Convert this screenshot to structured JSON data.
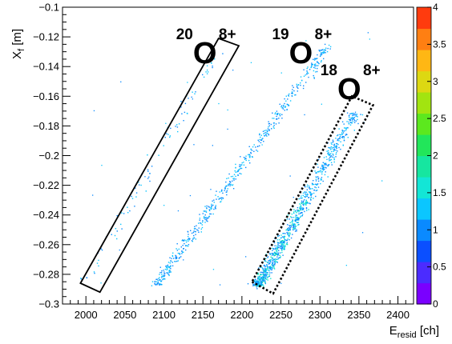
{
  "chart_data": {
    "type": "heatmap",
    "title": "",
    "xlabel": {
      "main": "E",
      "sub": "resid",
      "unit": "[ch]"
    },
    "ylabel": {
      "main": "X",
      "sub": "f",
      "unit": "[m]"
    },
    "xlim": [
      1970,
      2420
    ],
    "ylim": [
      -0.3,
      -0.1
    ],
    "x_ticks": [
      2000,
      2050,
      2100,
      2150,
      2200,
      2250,
      2300,
      2350,
      2400
    ],
    "x_tick_labels": [
      "2000",
      "2050",
      "2100",
      "2150",
      "2200",
      "2250",
      "2300",
      "2350",
      "2400"
    ],
    "y_ticks": [
      -0.3,
      -0.28,
      -0.26,
      -0.24,
      -0.22,
      -0.2,
      -0.18,
      -0.16,
      -0.14,
      -0.12,
      -0.1
    ],
    "y_tick_labels": [
      "−0.3",
      "−0.28",
      "−0.26",
      "−0.24",
      "−0.22",
      "−0.2",
      "−0.18",
      "−0.16",
      "−0.14",
      "−0.12",
      "−0.1"
    ],
    "z_range": [
      0,
      4
    ],
    "z_ticks": [
      0,
      0.5,
      1,
      1.5,
      2,
      2.5,
      3,
      3.5,
      4
    ],
    "z_tick_labels": [
      "0",
      "0.5",
      "1",
      "1.5",
      "2",
      "2.5",
      "3",
      "3.5",
      "4"
    ],
    "palette": [
      "#7a00ff",
      "#4b2cff",
      "#0b4fff",
      "#0a8aff",
      "#0bc6ff",
      "#13e6d6",
      "#16e6a0",
      "#22e65a",
      "#5ce81e",
      "#a2e410",
      "#ddd812",
      "#ffb714",
      "#ff7f12",
      "#ff3b0e"
    ],
    "grid": false,
    "legend": "none",
    "bands": [
      {
        "name": "20O8+",
        "from": [
          2000,
          -0.283
        ],
        "to": [
          2170,
          -0.128
        ],
        "spread_x": 14,
        "density": "low",
        "count": 90
      },
      {
        "name": "19O8+",
        "from": [
          2090,
          -0.287
        ],
        "to": [
          2310,
          -0.125
        ],
        "spread_x": 12,
        "density": "medium",
        "count": 550
      },
      {
        "name": "18O8+",
        "from": [
          2220,
          -0.287
        ],
        "to": [
          2345,
          -0.17
        ],
        "spread_x": 14,
        "density": "high",
        "count": 900
      }
    ],
    "annotations": [
      {
        "mass": "20",
        "element": "O",
        "charge": "8+",
        "x": 2162,
        "y": -0.126
      },
      {
        "mass": "19",
        "element": "O",
        "charge": "8+",
        "x": 2285,
        "y": -0.126
      },
      {
        "mass": "18",
        "element": "O",
        "charge": "8+",
        "x": 2347,
        "y": -0.15
      }
    ],
    "selection_boxes": [
      {
        "label": "20O8+ gate",
        "style": "solid",
        "corners": [
          [
            1993,
            -0.286
          ],
          [
            2018,
            -0.292
          ],
          [
            2196,
            -0.126
          ],
          [
            2170,
            -0.121
          ]
        ]
      },
      {
        "label": "18O8+ gate",
        "style": "dotted",
        "corners": [
          [
            2213,
            -0.285
          ],
          [
            2240,
            -0.293
          ],
          [
            2368,
            -0.166
          ],
          [
            2341,
            -0.16
          ]
        ]
      }
    ]
  }
}
